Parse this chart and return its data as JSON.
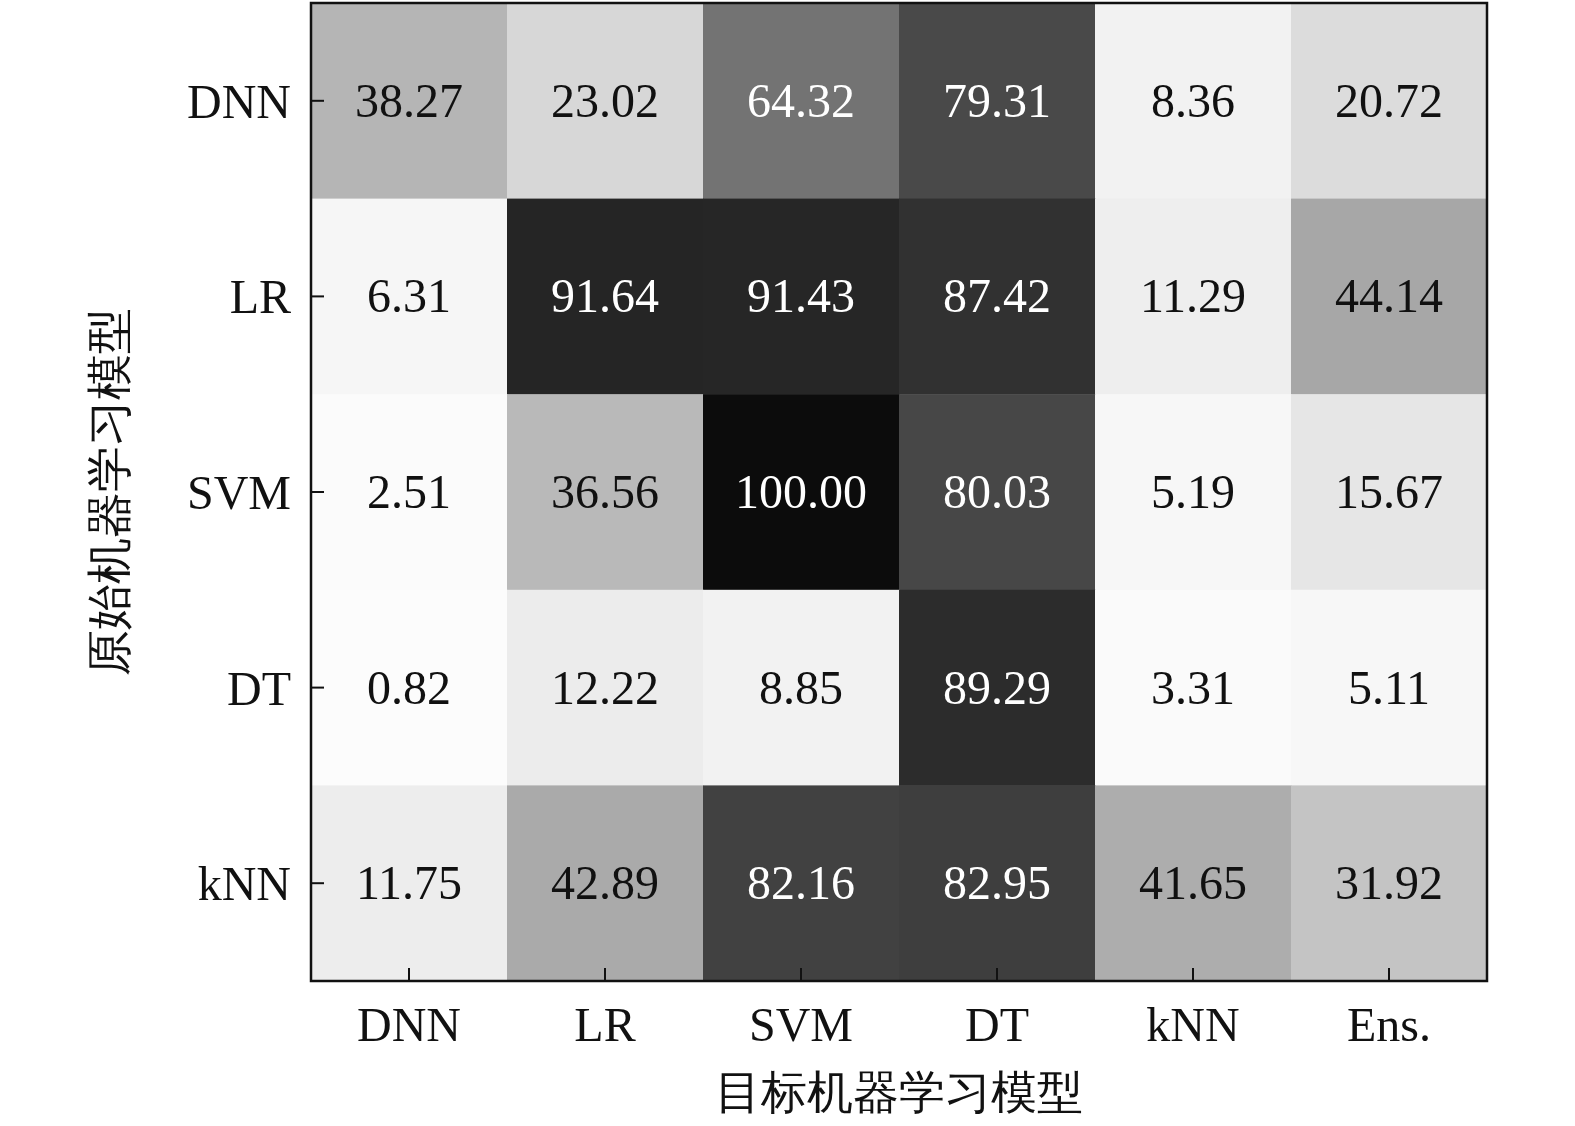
{
  "chart_data": {
    "type": "heatmap",
    "xlabel": "目标机器学习模型",
    "ylabel": "原始机器学习模型",
    "categories": [
      "DNN",
      "LR",
      "SVM",
      "DT",
      "kNN",
      "Ens."
    ],
    "y_categories": [
      "DNN",
      "LR",
      "SVM",
      "DT",
      "kNN"
    ],
    "cells": [
      [
        38.27,
        23.02,
        64.32,
        79.31,
        8.36,
        20.72
      ],
      [
        6.31,
        91.64,
        91.43,
        87.42,
        11.29,
        44.14
      ],
      [
        2.51,
        36.56,
        100.0,
        80.03,
        5.19,
        15.67
      ],
      [
        0.82,
        12.22,
        8.85,
        89.29,
        3.31,
        5.11
      ],
      [
        11.75,
        42.89,
        82.16,
        82.95,
        41.65,
        31.92
      ]
    ],
    "cell_labels": [
      [
        "38.27",
        "23.02",
        "64.32",
        "79.31",
        "8.36",
        "20.72"
      ],
      [
        "6.31",
        "91.64",
        "91.43",
        "87.42",
        "11.29",
        "44.14"
      ],
      [
        "2.51",
        "36.56",
        "100.00",
        "80.03",
        "5.19",
        "15.67"
      ],
      [
        "0.82",
        "12.22",
        "8.85",
        "89.29",
        "3.31",
        "5.11"
      ],
      [
        "11.75",
        "42.89",
        "82.16",
        "82.95",
        "41.65",
        "31.92"
      ]
    ]
  }
}
